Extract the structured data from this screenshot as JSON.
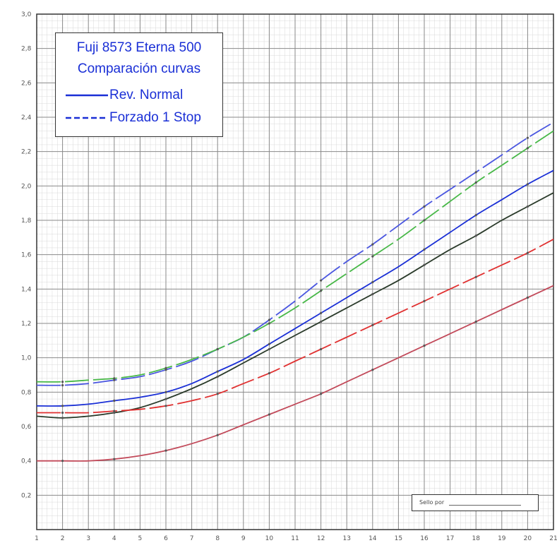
{
  "legend": {
    "title_line1": "Fuji 8573 Eterna 500",
    "title_line2": "Comparación curvas",
    "entries": [
      {
        "label": "Rev. Normal",
        "style": "solid",
        "color": "#1a2fd6"
      },
      {
        "label": "Forzado 1 Stop",
        "style": "dashed",
        "color": "#1a2fd6"
      }
    ]
  },
  "note_box": {
    "label": "Sello por"
  },
  "chart_data": {
    "type": "line",
    "title": "Fuji 8573 Eterna 500 Comparación curvas",
    "xlabel": "",
    "ylabel": "",
    "xlim": [
      1,
      21
    ],
    "ylim": [
      0,
      3.0
    ],
    "x_ticks": [
      "1",
      "2",
      "3",
      "4",
      "5",
      "6",
      "7",
      "8",
      "9",
      "10",
      "11",
      "12",
      "13",
      "14",
      "15",
      "16",
      "17",
      "18",
      "19",
      "20",
      "21"
    ],
    "y_ticks": [
      "0,2",
      "0,4",
      "0,6",
      "0,8",
      "1,0",
      "1,2",
      "1,4",
      "1,6",
      "1,8",
      "2,0",
      "2,2",
      "2,4",
      "2,6",
      "2,8",
      "3,0"
    ],
    "grid": true,
    "legend_position": "top-left",
    "x": [
      1,
      2,
      3,
      4,
      5,
      6,
      7,
      8,
      9,
      10,
      11,
      12,
      13,
      14,
      15,
      16,
      17,
      18,
      19,
      20,
      21
    ],
    "series": [
      {
        "name": "Forzado 1 Stop",
        "style": "dashed",
        "color": "#4a56e0",
        "values": [
          0.84,
          0.84,
          0.85,
          0.87,
          0.89,
          0.93,
          0.98,
          1.05,
          1.12,
          1.22,
          1.33,
          1.45,
          1.56,
          1.66,
          1.77,
          1.88,
          1.98,
          2.08,
          2.18,
          2.28,
          2.37
        ]
      },
      {
        "style": "dashed",
        "color": "#47b847",
        "values": [
          0.86,
          0.86,
          0.87,
          0.88,
          0.9,
          0.94,
          0.99,
          1.05,
          1.12,
          1.2,
          1.29,
          1.39,
          1.49,
          1.59,
          1.69,
          1.8,
          1.91,
          2.02,
          2.12,
          2.22,
          2.32
        ]
      },
      {
        "name": "Rev. Normal",
        "style": "solid",
        "color": "#1a2fd6",
        "values": [
          0.72,
          0.72,
          0.73,
          0.75,
          0.77,
          0.8,
          0.85,
          0.92,
          0.99,
          1.08,
          1.17,
          1.26,
          1.35,
          1.44,
          1.53,
          1.63,
          1.73,
          1.83,
          1.92,
          2.01,
          2.09
        ]
      },
      {
        "style": "solid",
        "color": "#2a3a2a",
        "values": [
          0.66,
          0.65,
          0.66,
          0.68,
          0.71,
          0.76,
          0.82,
          0.89,
          0.97,
          1.05,
          1.13,
          1.21,
          1.29,
          1.37,
          1.45,
          1.54,
          1.63,
          1.71,
          1.8,
          1.88,
          1.96
        ]
      },
      {
        "style": "dashed",
        "color": "#e03030",
        "values": [
          0.68,
          0.68,
          0.68,
          0.69,
          0.7,
          0.72,
          0.75,
          0.79,
          0.85,
          0.91,
          0.98,
          1.05,
          1.12,
          1.19,
          1.26,
          1.33,
          1.4,
          1.47,
          1.54,
          1.61,
          1.69
        ]
      },
      {
        "style": "solid",
        "color": "#c24a5a",
        "values": [
          0.4,
          0.4,
          0.4,
          0.41,
          0.43,
          0.46,
          0.5,
          0.55,
          0.61,
          0.67,
          0.73,
          0.79,
          0.86,
          0.93,
          1.0,
          1.07,
          1.14,
          1.21,
          1.28,
          1.35,
          1.42
        ]
      }
    ]
  }
}
